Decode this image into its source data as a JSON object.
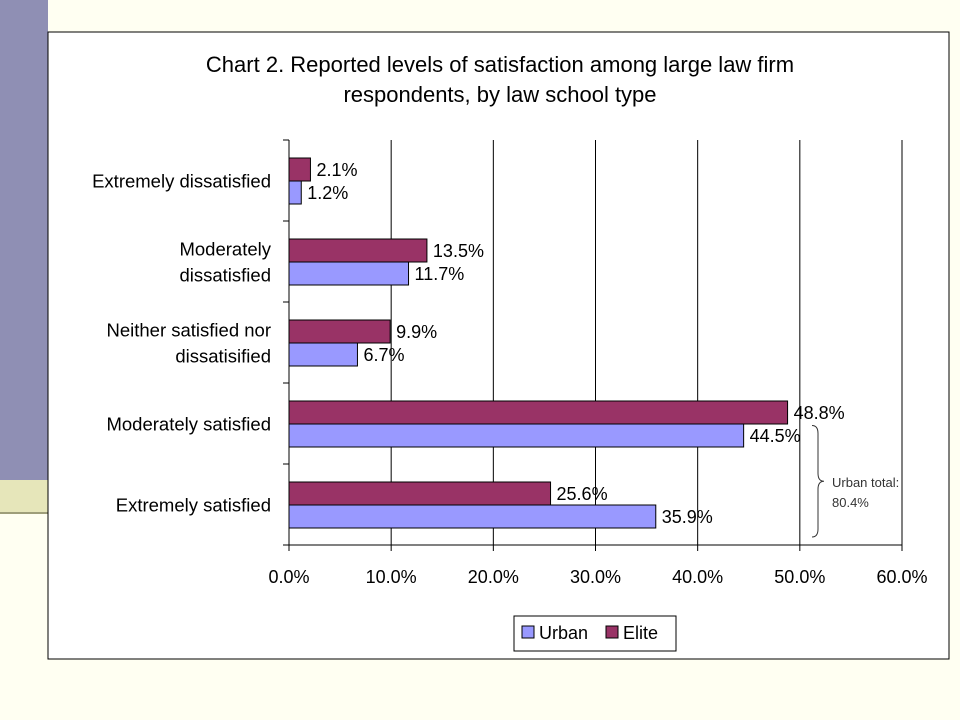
{
  "colors": {
    "urban": "#9999FF",
    "elite": "#993366",
    "background": "#FFFFF2",
    "plot_area": "#FFFFFF",
    "band": "#8F8FB4"
  },
  "chart_data": {
    "type": "bar",
    "orientation": "horizontal",
    "title_lines": [
      "Chart 2. Reported levels of satisfaction among large law firm",
      "respondents, by law school type"
    ],
    "categories": [
      [
        "Extremely dissatisfied"
      ],
      [
        "Moderately",
        "dissatisfied"
      ],
      [
        "Neither satisfied nor",
        "dissatisified"
      ],
      [
        "Moderately satisfied"
      ],
      [
        "Extremely satisfied"
      ]
    ],
    "series": [
      {
        "name": "Urban",
        "color": "#9999FF",
        "values": [
          1.2,
          11.7,
          6.7,
          44.5,
          35.9
        ],
        "labels": [
          "1.2%",
          "11.7%",
          "6.7%",
          "44.5%",
          "35.9%"
        ]
      },
      {
        "name": "Elite",
        "color": "#993366",
        "values": [
          2.1,
          13.5,
          9.9,
          48.8,
          25.6
        ],
        "labels": [
          "2.1%",
          "13.5%",
          "9.9%",
          "48.8%",
          "25.6%"
        ]
      }
    ],
    "xlim": [
      0,
      60
    ],
    "xticks": [
      0,
      10,
      20,
      30,
      40,
      50,
      60
    ],
    "xtick_labels": [
      "0.0%",
      "10.0%",
      "20.0%",
      "30.0%",
      "40.0%",
      "50.0%",
      "60.0%"
    ],
    "grid": "vertical",
    "legend": {
      "placement": "bottom",
      "entries": [
        "Urban",
        "Elite"
      ]
    },
    "annotation": {
      "lines": [
        "Urban total:",
        "80.4%"
      ],
      "brace_categories": [
        3,
        4
      ]
    }
  }
}
